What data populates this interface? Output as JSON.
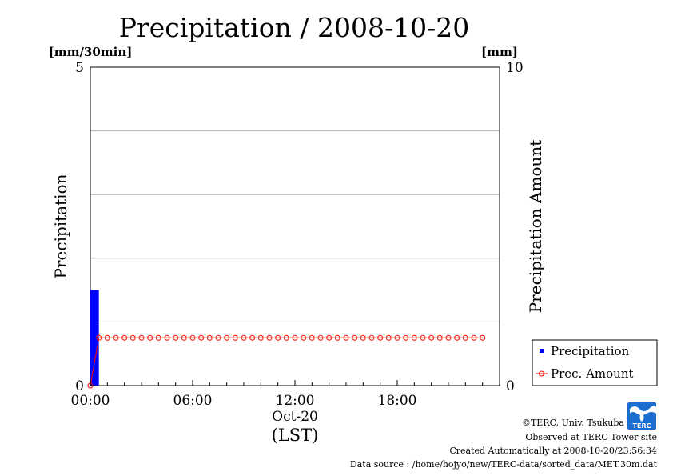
{
  "chart_data": {
    "type": "bar",
    "title": "Precipitation / 2008-10-20",
    "ylabel": "Precipitation",
    "y2label": "Precipitation Amount",
    "yunit": "[mm/30min]",
    "y2unit": "[mm]",
    "ylim": [
      0,
      5
    ],
    "y2lim": [
      0,
      10
    ],
    "yticks": [
      "0",
      "5"
    ],
    "y2ticks": [
      "0",
      "10"
    ],
    "xlim_hours": [
      0,
      24
    ],
    "xticks": [
      {
        "hour": 0,
        "label": "00:00"
      },
      {
        "hour": 6,
        "label": "06:00"
      },
      {
        "hour": 12,
        "label": "12:00"
      },
      {
        "hour": 18,
        "label": "18:00"
      }
    ],
    "xdate": "Oct-20",
    "xlabel": "(LST)",
    "gridlines_y": [
      1,
      2,
      3,
      4
    ],
    "series": [
      {
        "name": "Precipitation",
        "kind": "bar",
        "color": "#0000ff",
        "axis": "left",
        "x_hours": [
          0.25
        ],
        "values": [
          1.5
        ]
      },
      {
        "name": "Prec. Amount",
        "kind": "line-marker",
        "color": "#ff0000",
        "axis": "right",
        "x_hours": [
          0.0,
          0.5,
          1.0,
          1.5,
          2.0,
          2.5,
          3.0,
          3.5,
          4.0,
          4.5,
          5.0,
          5.5,
          6.0,
          6.5,
          7.0,
          7.5,
          8.0,
          8.5,
          9.0,
          9.5,
          10.0,
          10.5,
          11.0,
          11.5,
          12.0,
          12.5,
          13.0,
          13.5,
          14.0,
          14.5,
          15.0,
          15.5,
          16.0,
          16.5,
          17.0,
          17.5,
          18.0,
          18.5,
          19.0,
          19.5,
          20.0,
          20.5,
          21.0,
          21.5,
          22.0,
          22.5,
          23.0
        ],
        "values": [
          0,
          1.5,
          1.5,
          1.5,
          1.5,
          1.5,
          1.5,
          1.5,
          1.5,
          1.5,
          1.5,
          1.5,
          1.5,
          1.5,
          1.5,
          1.5,
          1.5,
          1.5,
          1.5,
          1.5,
          1.5,
          1.5,
          1.5,
          1.5,
          1.5,
          1.5,
          1.5,
          1.5,
          1.5,
          1.5,
          1.5,
          1.5,
          1.5,
          1.5,
          1.5,
          1.5,
          1.5,
          1.5,
          1.5,
          1.5,
          1.5,
          1.5,
          1.5,
          1.5,
          1.5,
          1.5,
          1.5
        ]
      }
    ],
    "legend": {
      "position": "bottom-right",
      "entries": [
        "Precipitation",
        "Prec. Amount"
      ]
    }
  },
  "footer": {
    "copyright": "©TERC, Univ. Tsukuba",
    "observed": "Observed at TERC Tower site",
    "created": "Created Automatically at 2008-10-20/23:56:34",
    "source": "Data source : /home/hojyo/new/TERC-data/sorted_data/MET.30m.dat"
  },
  "logo": {
    "text": "TERC",
    "color": "#1a6fd1"
  }
}
